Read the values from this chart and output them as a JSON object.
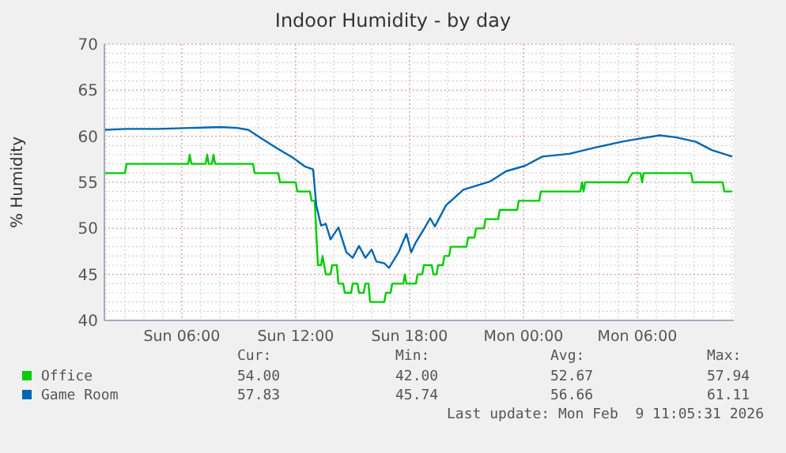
{
  "chart_data": {
    "type": "line",
    "title": "Indoor Humidity - by day",
    "ylabel": "% Humidity",
    "xlim": [
      "2026-02-08T01:55",
      "2026-02-09T11:05"
    ],
    "xticks": [
      {
        "value": "2026-02-08T06:00",
        "label": "Sun 06:00"
      },
      {
        "value": "2026-02-08T12:00",
        "label": "Sun 12:00"
      },
      {
        "value": "2026-02-08T18:00",
        "label": "Sun 18:00"
      },
      {
        "value": "2026-02-09T00:00",
        "label": "Mon 00:00"
      },
      {
        "value": "2026-02-09T06:00",
        "label": "Mon 06:00"
      }
    ],
    "ylim": [
      40,
      70
    ],
    "yticks": [
      40,
      45,
      50,
      55,
      60,
      65,
      70
    ],
    "grid": true,
    "legend": "bottom",
    "series": [
      {
        "name": "Office",
        "color": "#00cc00",
        "x": [
          "2026-02-08T01:55",
          "2026-02-08T03:00",
          "2026-02-08T03:05",
          "2026-02-08T06:20",
          "2026-02-08T06:25",
          "2026-02-08T06:30",
          "2026-02-08T07:15",
          "2026-02-08T07:20",
          "2026-02-08T07:25",
          "2026-02-08T07:35",
          "2026-02-08T07:40",
          "2026-02-08T07:45",
          "2026-02-08T09:45",
          "2026-02-08T09:50",
          "2026-02-08T11:05",
          "2026-02-08T11:10",
          "2026-02-08T12:00",
          "2026-02-08T12:05",
          "2026-02-08T12:45",
          "2026-02-08T12:50",
          "2026-02-08T13:00",
          "2026-02-08T13:10",
          "2026-02-08T13:20",
          "2026-02-08T13:25",
          "2026-02-08T13:35",
          "2026-02-08T13:50",
          "2026-02-08T13:55",
          "2026-02-08T14:10",
          "2026-02-08T14:15",
          "2026-02-08T14:30",
          "2026-02-08T14:35",
          "2026-02-08T14:55",
          "2026-02-08T15:00",
          "2026-02-08T15:15",
          "2026-02-08T15:20",
          "2026-02-08T15:35",
          "2026-02-08T15:40",
          "2026-02-08T15:50",
          "2026-02-08T15:55",
          "2026-02-08T16:40",
          "2026-02-08T16:45",
          "2026-02-08T17:00",
          "2026-02-08T17:05",
          "2026-02-08T17:40",
          "2026-02-08T17:45",
          "2026-02-08T17:50",
          "2026-02-08T18:20",
          "2026-02-08T18:25",
          "2026-02-08T18:40",
          "2026-02-08T18:45",
          "2026-02-08T19:10",
          "2026-02-08T19:15",
          "2026-02-08T19:25",
          "2026-02-08T19:30",
          "2026-02-08T19:45",
          "2026-02-08T19:50",
          "2026-02-08T20:05",
          "2026-02-08T20:10",
          "2026-02-08T21:00",
          "2026-02-08T21:05",
          "2026-02-08T21:25",
          "2026-02-08T21:30",
          "2026-02-08T21:55",
          "2026-02-08T22:00",
          "2026-02-08T22:40",
          "2026-02-08T22:45",
          "2026-02-08T23:40",
          "2026-02-08T23:45",
          "2026-02-09T00:50",
          "2026-02-09T00:55",
          "2026-02-09T03:00",
          "2026-02-09T03:05",
          "2026-02-09T03:10",
          "2026-02-09T03:15",
          "2026-02-09T05:30",
          "2026-02-09T05:35",
          "2026-02-09T05:45",
          "2026-02-09T06:10",
          "2026-02-09T06:15",
          "2026-02-09T06:20",
          "2026-02-09T08:50",
          "2026-02-09T08:55",
          "2026-02-09T10:30",
          "2026-02-09T10:35",
          "2026-02-09T11:00"
        ],
        "values": [
          56,
          56,
          57,
          57,
          58,
          57,
          57,
          58,
          57,
          57,
          58,
          57,
          57,
          56,
          56,
          55,
          55,
          54,
          54,
          53,
          53,
          46,
          46,
          47,
          45,
          45,
          46,
          46,
          44,
          44,
          43,
          43,
          44,
          44,
          43,
          43,
          44,
          44,
          42,
          42,
          43,
          43,
          44,
          44,
          45,
          44,
          44,
          45,
          45,
          46,
          46,
          45,
          45,
          46,
          46,
          47,
          47,
          48,
          48,
          49,
          49,
          50,
          50,
          51,
          51,
          52,
          52,
          53,
          53,
          54,
          54,
          55,
          54,
          55,
          55,
          55.5,
          56,
          56,
          55,
          56,
          56,
          55,
          55,
          54,
          54
        ]
      },
      {
        "name": "Game Room",
        "color": "#0066b3",
        "x": [
          "2026-02-08T01:55",
          "2026-02-08T03:05",
          "2026-02-08T04:45",
          "2026-02-08T06:25",
          "2026-02-08T08:05",
          "2026-02-08T08:55",
          "2026-02-08T09:30",
          "2026-02-08T10:10",
          "2026-02-08T11:00",
          "2026-02-08T11:50",
          "2026-02-08T12:30",
          "2026-02-08T12:55",
          "2026-02-08T13:05",
          "2026-02-08T13:20",
          "2026-02-08T13:35",
          "2026-02-08T13:50",
          "2026-02-08T14:15",
          "2026-02-08T14:40",
          "2026-02-08T15:00",
          "2026-02-08T15:20",
          "2026-02-08T15:40",
          "2026-02-08T16:00",
          "2026-02-08T16:15",
          "2026-02-08T16:40",
          "2026-02-08T16:55",
          "2026-02-08T17:25",
          "2026-02-08T17:50",
          "2026-02-08T18:05",
          "2026-02-08T18:20",
          "2026-02-08T18:45",
          "2026-02-08T19:05",
          "2026-02-08T19:20",
          "2026-02-08T19:55",
          "2026-02-08T20:50",
          "2026-02-08T22:15",
          "2026-02-08T23:05",
          "2026-02-09T00:05",
          "2026-02-09T01:00",
          "2026-02-09T02:25",
          "2026-02-09T03:50",
          "2026-02-09T05:10",
          "2026-02-09T06:00",
          "2026-02-09T07:10",
          "2026-02-09T08:00",
          "2026-02-09T09:05",
          "2026-02-09T09:55",
          "2026-02-09T11:00"
        ],
        "values": [
          60.7,
          60.8,
          60.8,
          60.9,
          61.0,
          60.9,
          60.7,
          59.8,
          58.7,
          57.7,
          56.7,
          56.4,
          52.5,
          50.3,
          50.5,
          48.8,
          50.1,
          47.4,
          46.8,
          48.1,
          46.8,
          47.7,
          46.4,
          46.2,
          45.7,
          47.4,
          49.4,
          47.4,
          48.5,
          49.9,
          51.1,
          50.2,
          52.5,
          54.2,
          55.1,
          56.2,
          56.8,
          57.8,
          58.1,
          58.8,
          59.4,
          59.7,
          60.1,
          59.9,
          59.4,
          58.5,
          57.8
        ]
      }
    ],
    "annotations": [
      "Cur:",
      "Min:",
      "Avg:",
      "Max:",
      "54.00",
      "42.00",
      "52.67",
      "57.94",
      "57.83",
      "45.74",
      "56.66",
      "61.11",
      "Last update: Mon Feb  9 11:05:31 2026"
    ]
  }
}
